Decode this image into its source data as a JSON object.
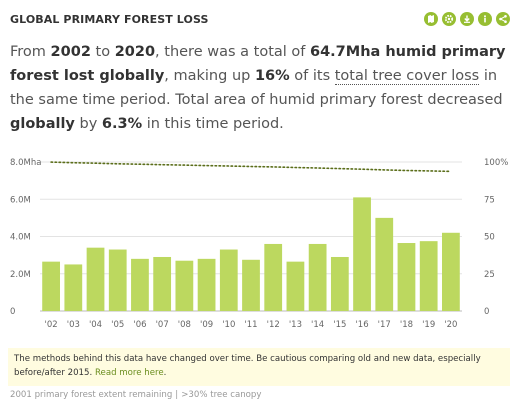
{
  "widget": {
    "title": "GLOBAL PRIMARY FOREST LOSS",
    "tools": [
      {
        "name": "map-icon"
      },
      {
        "name": "settings-icon"
      },
      {
        "name": "download-icon"
      },
      {
        "name": "info-icon"
      },
      {
        "name": "share-icon"
      }
    ],
    "accent_color": "#97be32"
  },
  "sentence": {
    "p1": "From ",
    "year_start": "2002",
    "p2": " to ",
    "year_end": "2020",
    "p3": ", there was a total of ",
    "loss_value": "64.7Mha humid primary forest lost globally",
    "p4": ", making up ",
    "percent": "16%",
    "p5": " of its ",
    "link_text": "total tree cover loss",
    "p6": " in the same time period. Total area of humid primary forest decreased ",
    "scope": "globally",
    "p7": " by ",
    "decrease": "6.3%",
    "p8": " in this time period."
  },
  "notice": {
    "text": "The methods behind this data have changed over time. Be cautious comparing old and new data, especially before/after 2015. ",
    "link": "Read more here",
    "end": "."
  },
  "footnote": {
    "left": "2001 primary forest extent remaining",
    "sep": "|",
    "right": ">30% tree canopy"
  },
  "chart_data": {
    "type": "bar",
    "categories": [
      "'02",
      "'03",
      "'04",
      "'05",
      "'06",
      "'07",
      "'08",
      "'09",
      "'10",
      "'11",
      "'12",
      "'13",
      "'14",
      "'15",
      "'16",
      "'17",
      "'18",
      "'19",
      "'20"
    ],
    "series": [
      {
        "values": [
          2.65,
          2.5,
          3.4,
          3.3,
          2.8,
          2.9,
          2.7,
          2.8,
          3.3,
          2.75,
          3.6,
          2.65,
          3.6,
          2.9,
          6.1,
          5.0,
          3.65,
          3.75,
          4.2
        ],
        "color": "#bcd85f",
        "unit": "ha",
        "axis": "left"
      },
      {
        "values": [
          99.9,
          99.5,
          99.2,
          98.8,
          98.5,
          98.2,
          97.9,
          97.6,
          97.3,
          97.0,
          96.7,
          96.3,
          96.0,
          95.6,
          95.2,
          94.7,
          94.3,
          94.0,
          93.7
        ],
        "color": "#5b6e1a",
        "style": "dotted-line",
        "unit": "%",
        "axis": "right"
      }
    ],
    "y_left": {
      "ticks": [
        "0",
        "2.0M",
        "4.0M",
        "6.0M",
        "8.0Mha"
      ],
      "tick_values": [
        0,
        2,
        4,
        6,
        8
      ],
      "ylim": [
        0,
        8
      ]
    },
    "y_right": {
      "ticks": [
        "0",
        "25",
        "50",
        "75",
        "100%"
      ],
      "tick_values": [
        0,
        25,
        50,
        75,
        100
      ],
      "ylim": [
        0,
        100
      ]
    },
    "grid": true
  }
}
